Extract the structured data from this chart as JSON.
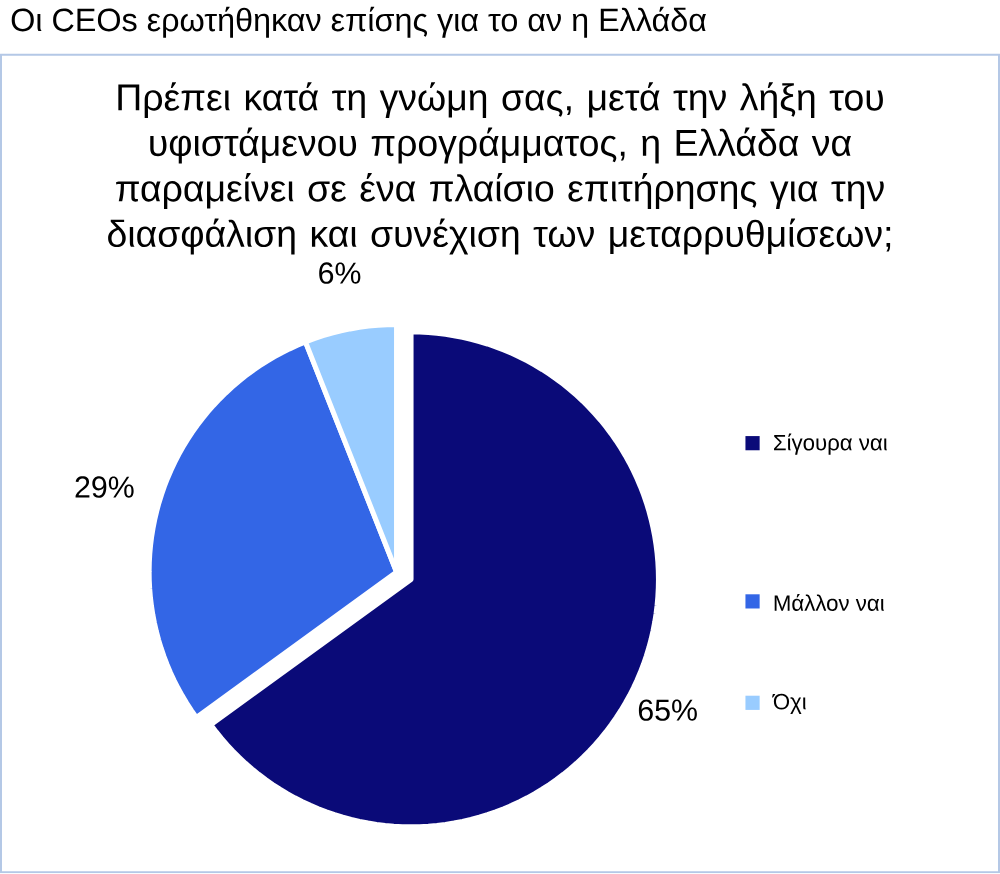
{
  "chart_data": {
    "type": "pie",
    "title": "Οι CEOs ερωτήθηκαν επίσης για το αν η Ελλάδα",
    "subtitle": "Πρέπει κατά τη γνώμη σας, μετά την λήξη του υφιστάμενου προγράμματος, η Ελλάδα να παραμείνει σε ένα πλαίσιο επιτήρησης για την διασφάλιση και συνέχιση των μεταρρυθμίσεων;",
    "categories": [
      "Σίγουρα ναι",
      "Μάλλον ναι",
      "Όχι"
    ],
    "values": [
      65,
      29,
      6
    ],
    "colors": [
      "#0a0a78",
      "#3366e6",
      "#99ccff"
    ],
    "value_labels": [
      "65%",
      "29%",
      "6%"
    ],
    "legend": "right"
  }
}
